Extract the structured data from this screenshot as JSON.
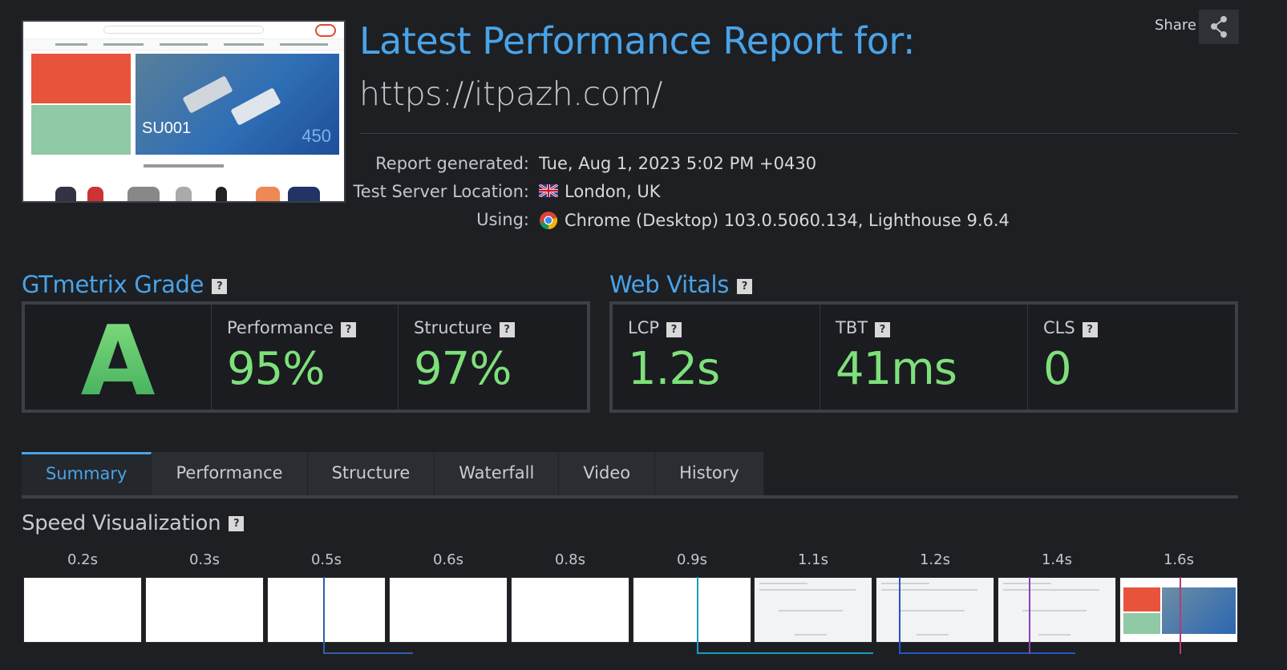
{
  "report": {
    "title": "Latest Performance Report for:",
    "url": "https://itpazh.com/",
    "share_label": "Share",
    "meta": [
      {
        "key": "Report generated:",
        "value": "Tue, Aug 1, 2023 5:02 PM +0430",
        "icon": ""
      },
      {
        "key": "Test Server Location:",
        "value": "London, UK",
        "icon": "uk-flag-icon"
      },
      {
        "key": "Using:",
        "value": "Chrome (Desktop) 103.0.5060.134, Lighthouse 9.6.4",
        "icon": "chrome-icon"
      }
    ]
  },
  "thumbnail": {
    "su_text": "SU001",
    "number_text": "450"
  },
  "grade": {
    "title": "GTmetrix Grade",
    "letter": "A",
    "performance_label": "Performance",
    "performance_value": "95%",
    "structure_label": "Structure",
    "structure_value": "97%"
  },
  "vitals": {
    "title": "Web Vitals",
    "items": [
      {
        "label": "LCP",
        "value": "1.2s"
      },
      {
        "label": "TBT",
        "value": "41ms"
      },
      {
        "label": "CLS",
        "value": "0"
      }
    ]
  },
  "tabs": [
    {
      "label": "Summary",
      "active": true
    },
    {
      "label": "Performance",
      "active": false
    },
    {
      "label": "Structure",
      "active": false
    },
    {
      "label": "Waterfall",
      "active": false
    },
    {
      "label": "Video",
      "active": false
    },
    {
      "label": "History",
      "active": false
    }
  ],
  "speed": {
    "title": "Speed Visualization",
    "frames": [
      {
        "time": "0.2s",
        "state": "blank"
      },
      {
        "time": "0.3s",
        "state": "blank"
      },
      {
        "time": "0.5s",
        "state": "blank"
      },
      {
        "time": "0.6s",
        "state": "blank"
      },
      {
        "time": "0.8s",
        "state": "blank"
      },
      {
        "time": "0.9s",
        "state": "blank"
      },
      {
        "time": "1.1s",
        "state": "partial"
      },
      {
        "time": "1.2s",
        "state": "partial"
      },
      {
        "time": "1.4s",
        "state": "partial"
      },
      {
        "time": "1.6s",
        "state": "full"
      }
    ]
  },
  "colors": {
    "accent": "#4aa3e8",
    "good": "#7ee07a",
    "background": "#1d1f23"
  },
  "help_glyph": "?"
}
